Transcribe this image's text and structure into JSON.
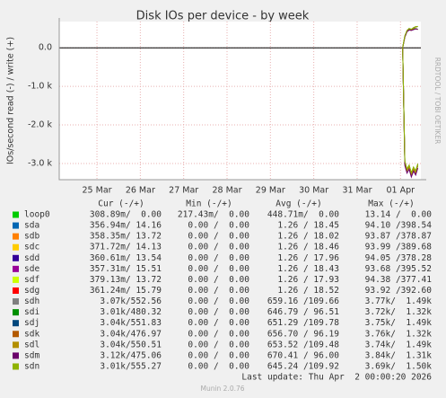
{
  "chart_data": {
    "type": "line",
    "title": "Disk IOs per device - by week",
    "y_label": "IOs/second read (-) / write (+)",
    "side_note": "RRDTOOL / TOBI OETIKER",
    "xlim": [
      -0.87,
      7.47
    ],
    "xticks": [
      {
        "value": 0,
        "label": "25 Mar"
      },
      {
        "value": 1,
        "label": "26 Mar"
      },
      {
        "value": 2,
        "label": "27 Mar"
      },
      {
        "value": 3,
        "label": "28 Mar"
      },
      {
        "value": 4,
        "label": "29 Mar"
      },
      {
        "value": 5,
        "label": "30 Mar"
      },
      {
        "value": 6,
        "label": "31 Mar"
      },
      {
        "value": 7,
        "label": "01 Apr"
      }
    ],
    "ylim": [
      -3420,
      680
    ],
    "yticks": [
      {
        "value": 0,
        "label": "0.0"
      },
      {
        "value": -1000,
        "label": "-1.0 k"
      },
      {
        "value": -2000,
        "label": "-2.0 k"
      },
      {
        "value": -3000,
        "label": "-3.0 k"
      }
    ],
    "grid": true,
    "x": [
      7.05,
      7.1,
      7.15,
      7.2,
      7.25,
      7.3,
      7.35,
      7.4
    ],
    "columns": [
      "Cur (-/+)",
      "Min (-/+)",
      "Avg (-/+)",
      "Max (-/+)"
    ],
    "series": [
      {
        "name": "loop0",
        "color": "#00cc00",
        "stats": [
          "308.89m/  0.00",
          "217.43m/  0.00",
          "448.71m/  0.00",
          "13.14 /  0.00"
        ]
      },
      {
        "name": "sda",
        "color": "#0066b3",
        "stats": [
          "356.94m/ 14.16",
          "0.00 /  0.00",
          "1.26 / 18.45",
          "94.10 /398.54"
        ]
      },
      {
        "name": "sdb",
        "color": "#ff8000",
        "stats": [
          "358.35m/ 13.72",
          "0.00 /  0.00",
          "1.26 / 18.02",
          "93.87 /378.87"
        ]
      },
      {
        "name": "sdc",
        "color": "#ffcc00",
        "stats": [
          "371.72m/ 14.13",
          "0.00 /  0.00",
          "1.26 / 18.46",
          "93.99 /389.68"
        ]
      },
      {
        "name": "sdd",
        "color": "#330099",
        "stats": [
          "360.61m/ 13.54",
          "0.00 /  0.00",
          "1.26 / 17.96",
          "94.05 /378.28"
        ]
      },
      {
        "name": "sde",
        "color": "#990099",
        "stats": [
          "357.31m/ 15.51",
          "0.00 /  0.00",
          "1.26 / 18.43",
          "93.68 /395.52"
        ]
      },
      {
        "name": "sdf",
        "color": "#ccff00",
        "stats": [
          "379.13m/ 13.72",
          "0.00 /  0.00",
          "1.26 / 17.93",
          "94.38 /377.41"
        ]
      },
      {
        "name": "sdg",
        "color": "#ff0000",
        "stats": [
          "361.24m/ 15.79",
          "0.00 /  0.00",
          "1.26 / 18.52",
          "93.92 /392.60"
        ]
      },
      {
        "name": "sdh",
        "color": "#808080",
        "stats": [
          "3.07k/552.56",
          "0.00 /  0.00",
          "659.16 /109.66",
          "3.77k/  1.49k"
        ],
        "read": [
          0,
          -3000,
          -3200,
          -3100,
          -3300,
          -3150,
          -3250,
          -3070
        ],
        "write": [
          0,
          300,
          450,
          500,
          480,
          520,
          550,
          553
        ]
      },
      {
        "name": "sdi",
        "color": "#008f00",
        "stats": [
          "3.01k/480.32",
          "0.00 /  0.00",
          "646.79 / 96.51",
          "3.72k/  1.32k"
        ],
        "read": [
          0,
          -2950,
          -3150,
          -3050,
          -3250,
          -3100,
          -3200,
          -3010
        ],
        "write": [
          0,
          280,
          430,
          470,
          460,
          490,
          500,
          480
        ]
      },
      {
        "name": "sdj",
        "color": "#00487d",
        "stats": [
          "3.04k/551.83",
          "0.00 /  0.00",
          "651.29 /109.78",
          "3.75k/  1.49k"
        ],
        "read": [
          0,
          -2980,
          -3180,
          -3080,
          -3280,
          -3130,
          -3230,
          -3040
        ],
        "write": [
          0,
          300,
          440,
          500,
          470,
          520,
          540,
          552
        ]
      },
      {
        "name": "sdk",
        "color": "#b35a00",
        "stats": [
          "3.04k/476.97",
          "0.00 /  0.00",
          "656.70 / 96.19",
          "3.76k/  1.32k"
        ],
        "read": [
          0,
          -2990,
          -3190,
          -3090,
          -3290,
          -3140,
          -3240,
          -3040
        ],
        "write": [
          0,
          280,
          420,
          460,
          450,
          480,
          490,
          477
        ]
      },
      {
        "name": "sdl",
        "color": "#b38f00",
        "stats": [
          "3.04k/550.51",
          "0.00 /  0.00",
          "653.52 /109.48",
          "3.74k/  1.49k"
        ],
        "read": [
          0,
          -2970,
          -3170,
          -3070,
          -3270,
          -3120,
          -3220,
          -3040
        ],
        "write": [
          0,
          300,
          440,
          490,
          470,
          510,
          540,
          551
        ]
      },
      {
        "name": "sdm",
        "color": "#6b006b",
        "stats": [
          "3.12k/475.06",
          "0.00 /  0.00",
          "670.41 / 96.00",
          "3.84k/  1.31k"
        ],
        "read": [
          0,
          -3050,
          -3250,
          -3150,
          -3350,
          -3200,
          -3300,
          -3120
        ],
        "write": [
          0,
          280,
          420,
          460,
          450,
          470,
          490,
          475
        ]
      },
      {
        "name": "sdn",
        "color": "#8fb300",
        "stats": [
          "3.01k/555.27",
          "0.00 /  0.00",
          "645.24 /109.92",
          "3.69k/  1.50k"
        ],
        "read": [
          0,
          -2940,
          -3140,
          -3040,
          -3240,
          -3090,
          -3190,
          -3010
        ],
        "write": [
          0,
          310,
          450,
          500,
          480,
          520,
          550,
          555
        ]
      }
    ],
    "last_update": "Last update: Thu Apr  2 00:00:20 2026",
    "footer": "Munin 2.0.76"
  }
}
